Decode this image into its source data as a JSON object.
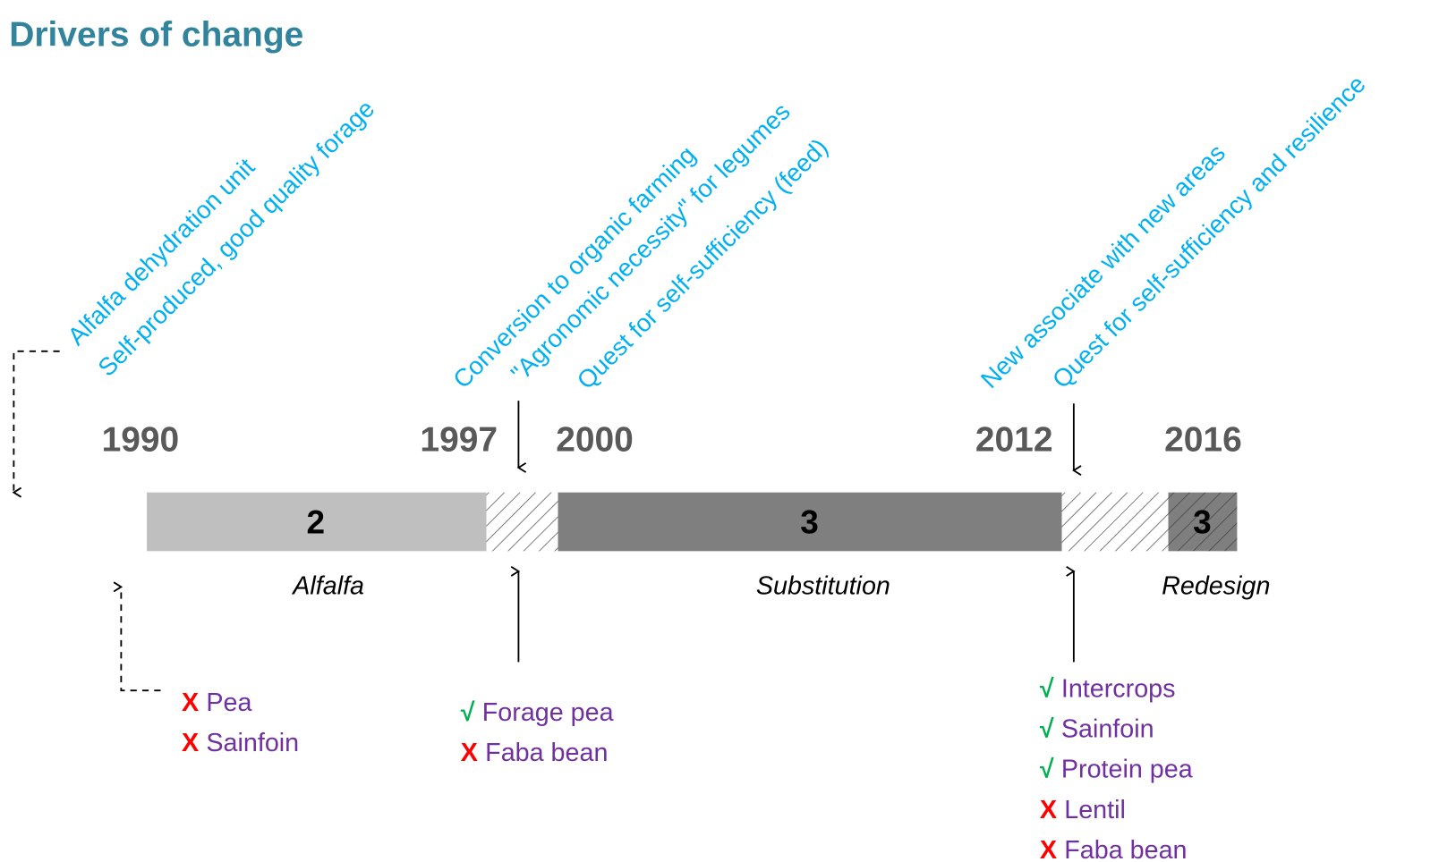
{
  "title": "Drivers of change",
  "drivers": [
    {
      "lines": [
        "Alfalfa dehydration unit",
        "Self-produced, good quality forage"
      ]
    },
    {
      "lines": [
        "Conversion to organic farming",
        "\"Agronomic necessity\" for legumes",
        "Quest for self-sufficiency (feed)"
      ]
    },
    {
      "lines": [
        "New associate with new areas",
        "Quest for self-sufficiency and resilience"
      ]
    }
  ],
  "years": [
    "1990",
    "1997",
    "2000",
    "2012",
    "2016"
  ],
  "segments": [
    "2",
    "3",
    "3"
  ],
  "phases": [
    "Alfalfa",
    "Substitution",
    "Redesign"
  ],
  "crops": [
    [
      {
        "mark": "X",
        "name": "Pea"
      },
      {
        "mark": "X",
        "name": "Sainfoin"
      }
    ],
    [
      {
        "mark": "√",
        "name": "Forage pea"
      },
      {
        "mark": "X",
        "name": "Faba bean"
      }
    ],
    [
      {
        "mark": "√",
        "name": "Intercrops"
      },
      {
        "mark": "√",
        "name": "Sainfoin"
      },
      {
        "mark": "√",
        "name": "Protein pea"
      },
      {
        "mark": "X",
        "name": "Lentil"
      },
      {
        "mark": "X",
        "name": "Faba bean"
      }
    ]
  ]
}
